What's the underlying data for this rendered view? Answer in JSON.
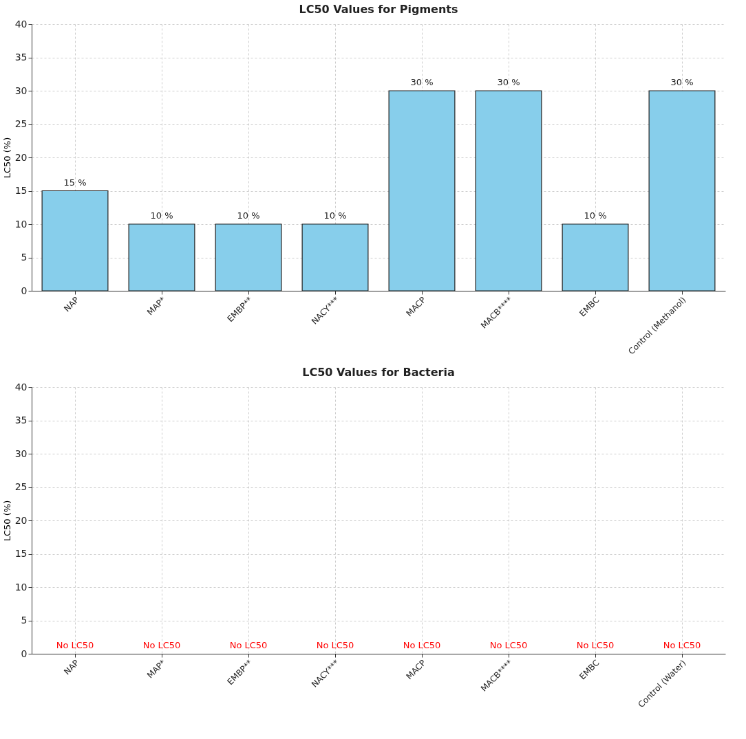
{
  "chart_data": [
    {
      "type": "bar",
      "title": "LC50 Values for Pigments",
      "ylabel": "LC50 (%)",
      "categories": [
        "NAP",
        "MAP*",
        "EMBP**",
        "NACY***",
        "MACP",
        "MACB****",
        "EMBC",
        "Control (Methanol)"
      ],
      "values": [
        15,
        10,
        10,
        10,
        30,
        30,
        10,
        30
      ],
      "value_labels": [
        "15 %",
        "10 %",
        "10 %",
        "10 %",
        "30 %",
        "30 %",
        "10 %",
        "30 %"
      ],
      "color": "#87ceeb",
      "ylim": [
        0,
        40
      ],
      "yticks": [
        0,
        5,
        10,
        15,
        20,
        25,
        30,
        35,
        40
      ],
      "grid": true
    },
    {
      "type": "bar",
      "title": "LC50 Values for Bacteria",
      "ylabel": "LC50 (%)",
      "categories": [
        "NAP",
        "MAP*",
        "EMBP**",
        "NACY***",
        "MACP",
        "MACB****",
        "EMBC",
        "Control (Water)"
      ],
      "values": [
        null,
        null,
        null,
        null,
        null,
        null,
        null,
        null
      ],
      "value_labels": [
        "No LC50",
        "No LC50",
        "No LC50",
        "No LC50",
        "No LC50",
        "No LC50",
        "No LC50",
        "No LC50"
      ],
      "color": "#87ceeb",
      "ylim": [
        0,
        40
      ],
      "yticks": [
        0,
        5,
        10,
        15,
        20,
        25,
        30,
        35,
        40
      ],
      "grid": true
    }
  ]
}
